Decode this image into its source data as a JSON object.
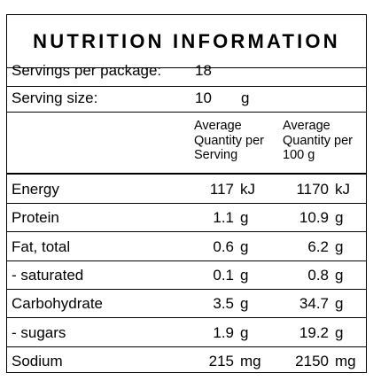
{
  "title": "NUTRITION INFORMATION",
  "servings": {
    "label": "Servings per package:",
    "value": "18"
  },
  "serving_size": {
    "label": "Serving size:",
    "value": "10",
    "unit": "g"
  },
  "headers": {
    "per_serving": [
      "Average",
      "Quantity per",
      "Serving"
    ],
    "per_100g": [
      "Average",
      "Quantity per",
      "100 g"
    ]
  },
  "rows": [
    {
      "name": "Energy",
      "serving": "117",
      "serving_unit": "kJ",
      "per100": "1170",
      "per100_unit": "kJ"
    },
    {
      "name": "Protein",
      "serving": "1.1",
      "serving_unit": "g",
      "per100": "10.9",
      "per100_unit": "g"
    },
    {
      "name": "Fat, total",
      "serving": "0.6",
      "serving_unit": "g",
      "per100": "6.2",
      "per100_unit": "g"
    },
    {
      "name": "- saturated",
      "serving": "0.1",
      "serving_unit": "g",
      "per100": "0.8",
      "per100_unit": "g"
    },
    {
      "name": "Carbohydrate",
      "serving": "3.5",
      "serving_unit": "g",
      "per100": "34.7",
      "per100_unit": "g"
    },
    {
      "name": "- sugars",
      "serving": "1.9",
      "serving_unit": "g",
      "per100": "19.2",
      "per100_unit": "g"
    },
    {
      "name": "Sodium",
      "serving": "215",
      "serving_unit": "mg",
      "per100": "2150",
      "per100_unit": "mg"
    }
  ]
}
